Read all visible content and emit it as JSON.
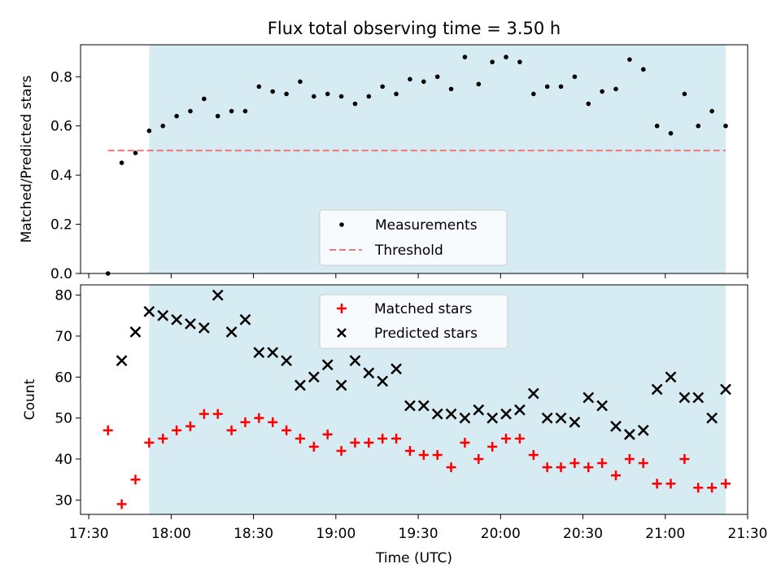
{
  "title": "Flux total observing time = 3.50 h",
  "colors": {
    "span": "#add8e6",
    "measurement": "#000000",
    "threshold": "#f07878",
    "matched": "#ff0000",
    "predicted": "#000000"
  },
  "chart_data": [
    {
      "type": "scatter",
      "ylabel": "Matched/Predicted stars",
      "ylim": [
        0,
        0.93
      ],
      "yticks": [
        0.0,
        0.2,
        0.4,
        0.6,
        0.8
      ],
      "ytick_labels": [
        "0.0",
        "0.2",
        "0.4",
        "0.6",
        "0.8"
      ],
      "shaded_span": [
        "17:52",
        "21:22"
      ],
      "threshold_line": {
        "y": 0.5,
        "x_range": [
          "17:37",
          "21:22"
        ]
      },
      "legend": {
        "placement": "lower center",
        "entries": [
          "Measurements",
          "Threshold"
        ]
      },
      "series": [
        {
          "name": "Measurements",
          "marker": "dot",
          "points": [
            [
              "17:37",
              0.0
            ],
            [
              "17:42",
              0.45
            ],
            [
              "17:47",
              0.49
            ],
            [
              "17:52",
              0.58
            ],
            [
              "17:57",
              0.6
            ],
            [
              "18:02",
              0.64
            ],
            [
              "18:07",
              0.66
            ],
            [
              "18:12",
              0.71
            ],
            [
              "18:17",
              0.64
            ],
            [
              "18:22",
              0.66
            ],
            [
              "18:27",
              0.66
            ],
            [
              "18:32",
              0.76
            ],
            [
              "18:37",
              0.74
            ],
            [
              "18:42",
              0.73
            ],
            [
              "18:47",
              0.78
            ],
            [
              "18:52",
              0.72
            ],
            [
              "18:57",
              0.73
            ],
            [
              "19:02",
              0.72
            ],
            [
              "19:07",
              0.69
            ],
            [
              "19:12",
              0.72
            ],
            [
              "19:17",
              0.76
            ],
            [
              "19:22",
              0.73
            ],
            [
              "19:27",
              0.79
            ],
            [
              "19:32",
              0.78
            ],
            [
              "19:37",
              0.8
            ],
            [
              "19:42",
              0.75
            ],
            [
              "19:47",
              0.88
            ],
            [
              "19:52",
              0.77
            ],
            [
              "19:57",
              0.86
            ],
            [
              "20:02",
              0.88
            ],
            [
              "20:07",
              0.86
            ],
            [
              "20:12",
              0.73
            ],
            [
              "20:17",
              0.76
            ],
            [
              "20:22",
              0.76
            ],
            [
              "20:27",
              0.8
            ],
            [
              "20:32",
              0.69
            ],
            [
              "20:37",
              0.74
            ],
            [
              "20:42",
              0.75
            ],
            [
              "20:47",
              0.87
            ],
            [
              "20:52",
              0.83
            ],
            [
              "20:57",
              0.6
            ],
            [
              "21:02",
              0.57
            ],
            [
              "21:07",
              0.73
            ],
            [
              "21:12",
              0.6
            ],
            [
              "21:17",
              0.66
            ],
            [
              "21:22",
              0.6
            ]
          ]
        }
      ]
    },
    {
      "type": "scatter",
      "xlabel": "Time (UTC)",
      "ylabel": "Count",
      "ylim": [
        26.5,
        82.5
      ],
      "yticks": [
        30,
        40,
        50,
        60,
        70,
        80
      ],
      "ytick_labels": [
        "30",
        "40",
        "50",
        "60",
        "70",
        "80"
      ],
      "xlim": [
        "17:27",
        "21:30"
      ],
      "xticks": [
        "17:30",
        "18:00",
        "18:30",
        "19:00",
        "19:30",
        "20:00",
        "20:30",
        "21:00",
        "21:30"
      ],
      "xtick_labels": [
        "17:30",
        "18:00",
        "18:30",
        "19:00",
        "19:30",
        "20:00",
        "20:30",
        "21:00",
        "21:30"
      ],
      "shaded_span": [
        "17:52",
        "21:22"
      ],
      "legend": {
        "placement": "upper center",
        "entries": [
          "Matched stars",
          "Predicted stars"
        ]
      },
      "series": [
        {
          "name": "Matched stars",
          "marker": "plus",
          "points": [
            [
              "17:37",
              47
            ],
            [
              "17:42",
              29
            ],
            [
              "17:47",
              35
            ],
            [
              "17:52",
              44
            ],
            [
              "17:57",
              45
            ],
            [
              "18:02",
              47
            ],
            [
              "18:07",
              48
            ],
            [
              "18:12",
              51
            ],
            [
              "18:17",
              51
            ],
            [
              "18:22",
              47
            ],
            [
              "18:27",
              49
            ],
            [
              "18:32",
              50
            ],
            [
              "18:37",
              49
            ],
            [
              "18:42",
              47
            ],
            [
              "18:47",
              45
            ],
            [
              "18:52",
              43
            ],
            [
              "18:57",
              46
            ],
            [
              "19:02",
              42
            ],
            [
              "19:07",
              44
            ],
            [
              "19:12",
              44
            ],
            [
              "19:17",
              45
            ],
            [
              "19:22",
              45
            ],
            [
              "19:27",
              42
            ],
            [
              "19:32",
              41
            ],
            [
              "19:37",
              41
            ],
            [
              "19:42",
              38
            ],
            [
              "19:47",
              44
            ],
            [
              "19:52",
              40
            ],
            [
              "19:57",
              43
            ],
            [
              "20:02",
              45
            ],
            [
              "20:07",
              45
            ],
            [
              "20:12",
              41
            ],
            [
              "20:17",
              38
            ],
            [
              "20:22",
              38
            ],
            [
              "20:27",
              39
            ],
            [
              "20:32",
              38
            ],
            [
              "20:37",
              39
            ],
            [
              "20:42",
              36
            ],
            [
              "20:47",
              40
            ],
            [
              "20:52",
              39
            ],
            [
              "20:57",
              34
            ],
            [
              "21:02",
              34
            ],
            [
              "21:07",
              40
            ],
            [
              "21:12",
              33
            ],
            [
              "21:17",
              33
            ],
            [
              "21:22",
              34
            ]
          ]
        },
        {
          "name": "Predicted stars",
          "marker": "x",
          "points": [
            [
              "17:42",
              64
            ],
            [
              "17:47",
              71
            ],
            [
              "17:52",
              76
            ],
            [
              "17:57",
              75
            ],
            [
              "18:02",
              74
            ],
            [
              "18:07",
              73
            ],
            [
              "18:12",
              72
            ],
            [
              "18:17",
              80
            ],
            [
              "18:22",
              71
            ],
            [
              "18:27",
              74
            ],
            [
              "18:32",
              66
            ],
            [
              "18:37",
              66
            ],
            [
              "18:42",
              64
            ],
            [
              "18:47",
              58
            ],
            [
              "18:52",
              60
            ],
            [
              "18:57",
              63
            ],
            [
              "19:02",
              58
            ],
            [
              "19:07",
              64
            ],
            [
              "19:12",
              61
            ],
            [
              "19:17",
              59
            ],
            [
              "19:22",
              62
            ],
            [
              "19:27",
              53
            ],
            [
              "19:32",
              53
            ],
            [
              "19:37",
              51
            ],
            [
              "19:42",
              51
            ],
            [
              "19:47",
              50
            ],
            [
              "19:52",
              52
            ],
            [
              "19:57",
              50
            ],
            [
              "20:02",
              51
            ],
            [
              "20:07",
              52
            ],
            [
              "20:12",
              56
            ],
            [
              "20:17",
              50
            ],
            [
              "20:22",
              50
            ],
            [
              "20:27",
              49
            ],
            [
              "20:32",
              55
            ],
            [
              "20:37",
              53
            ],
            [
              "20:42",
              48
            ],
            [
              "20:47",
              46
            ],
            [
              "20:52",
              47
            ],
            [
              "20:57",
              57
            ],
            [
              "21:02",
              60
            ],
            [
              "21:07",
              55
            ],
            [
              "21:12",
              55
            ],
            [
              "21:17",
              50
            ],
            [
              "21:22",
              57
            ]
          ]
        }
      ]
    }
  ]
}
